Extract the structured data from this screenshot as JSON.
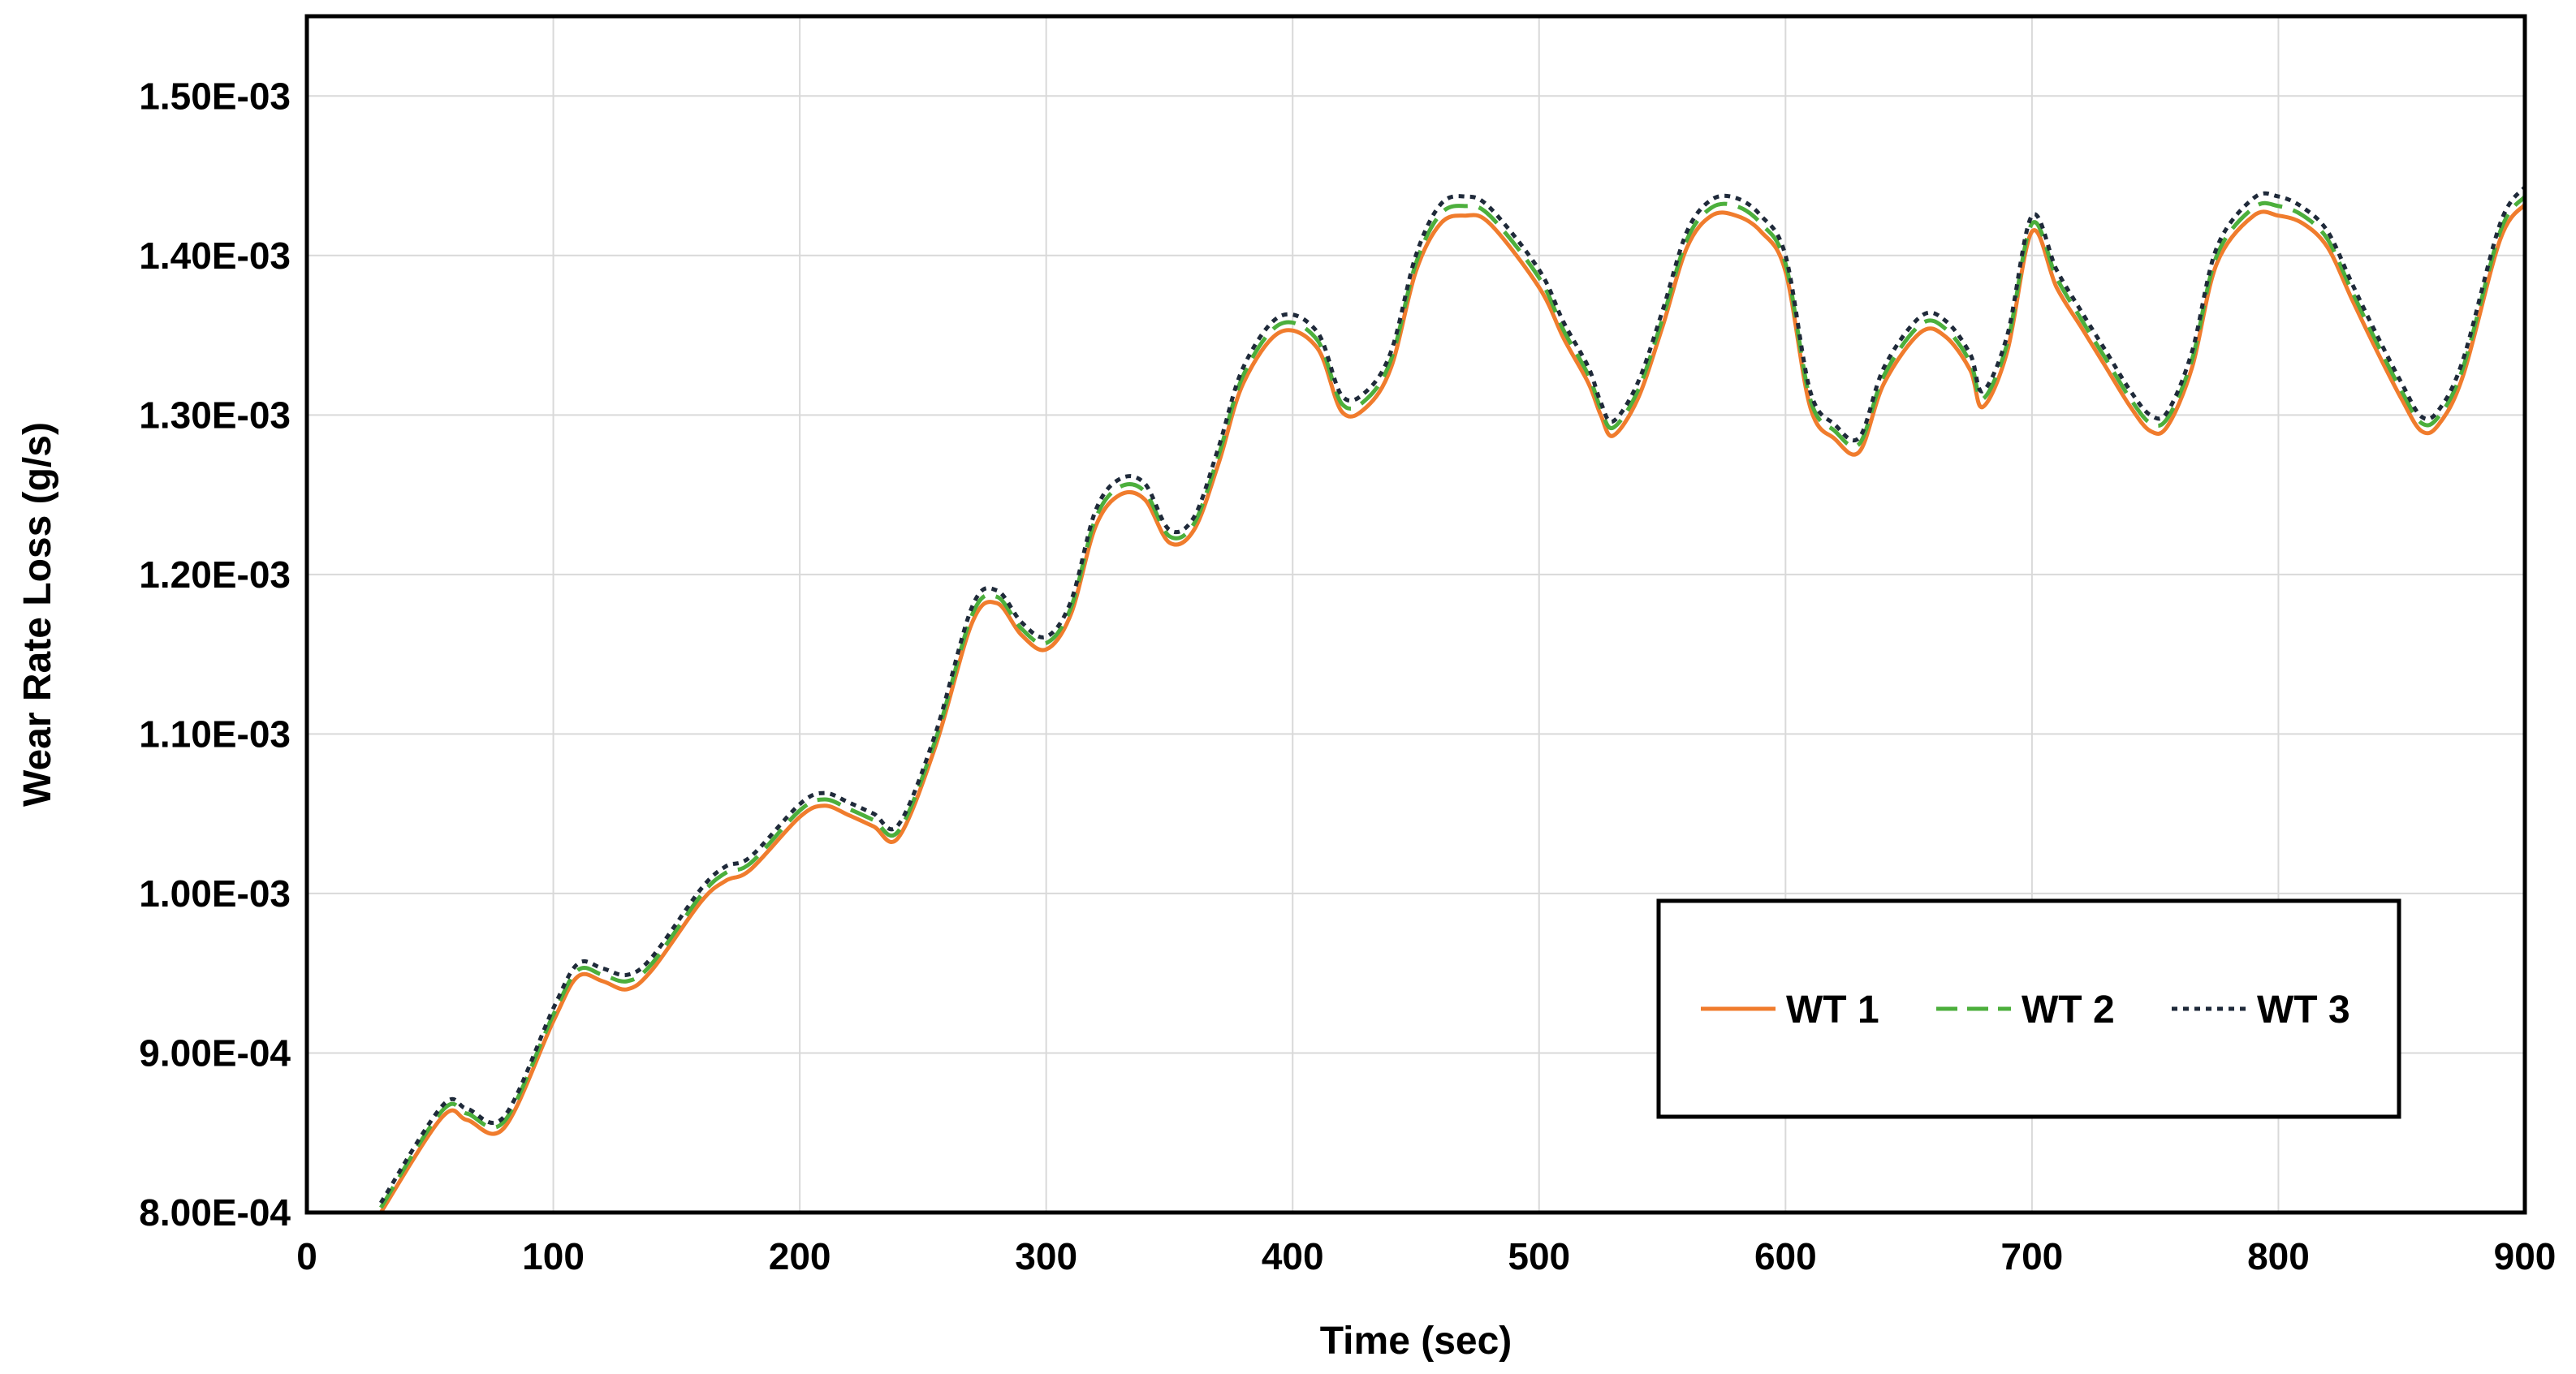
{
  "chart_data": {
    "type": "line",
    "xlabel": "Time (sec)",
    "ylabel": "Wear Rate Loss (g/s)",
    "xlim": [
      0,
      900
    ],
    "ylim": [
      0.0008,
      0.00155
    ],
    "x_ticks": [
      0,
      100,
      200,
      300,
      400,
      500,
      600,
      700,
      800,
      900
    ],
    "x_tick_labels": [
      "0",
      "100",
      "200",
      "300",
      "400",
      "500",
      "600",
      "700",
      "800",
      "900"
    ],
    "y_ticks": [
      0.0008,
      0.0009,
      0.001,
      0.0011,
      0.0012,
      0.0013,
      0.0014,
      0.0015
    ],
    "y_tick_labels": [
      "8.00E-04",
      "9.00E-04",
      "1.00E-03",
      "1.10E-03",
      "1.20E-03",
      "1.30E-03",
      "1.40E-03",
      "1.50E-03"
    ],
    "grid": true,
    "legend_position": "lower-right",
    "series": [
      {
        "name": "WT 1",
        "color": "#f07c2d",
        "style": "solid",
        "x": [
          30,
          55,
          65,
          80,
          100,
          110,
          120,
          130,
          140,
          160,
          170,
          180,
          200,
          210,
          220,
          230,
          240,
          255,
          270,
          280,
          290,
          300,
          310,
          320,
          330,
          340,
          350,
          360,
          370,
          380,
          395,
          410,
          420,
          430,
          440,
          450,
          460,
          470,
          480,
          500,
          510,
          520,
          525,
          530,
          540,
          550,
          560,
          570,
          580,
          590,
          600,
          610,
          620,
          630,
          640,
          655,
          665,
          675,
          680,
          690,
          700,
          710,
          720,
          730,
          740,
          748,
          755,
          765,
          775,
          790,
          800,
          810,
          820,
          830,
          840,
          850,
          858,
          865,
          875,
          890,
          900
        ],
        "y": [
          0.0008,
          0.00086,
          0.000858,
          0.000853,
          0.00092,
          0.000948,
          0.000945,
          0.00094,
          0.000952,
          0.000995,
          0.001008,
          0.001015,
          0.001048,
          0.001055,
          0.001049,
          0.001042,
          0.001035,
          0.001092,
          0.00117,
          0.001182,
          0.001162,
          0.001153,
          0.001175,
          0.00123,
          0.00125,
          0.001247,
          0.00122,
          0.001228,
          0.00127,
          0.00132,
          0.001352,
          0.001342,
          0.001302,
          0.001305,
          0.00133,
          0.00139,
          0.00142,
          0.001425,
          0.00142,
          0.00138,
          0.001348,
          0.00132,
          0.0013,
          0.001287,
          0.00131,
          0.001355,
          0.001405,
          0.001425,
          0.001425,
          0.001415,
          0.00139,
          0.001305,
          0.001285,
          0.001277,
          0.00132,
          0.001352,
          0.001349,
          0.001328,
          0.001305,
          0.00134,
          0.001415,
          0.00138,
          0.001355,
          0.00133,
          0.001305,
          0.00129,
          0.001293,
          0.00133,
          0.001395,
          0.001425,
          0.001425,
          0.00142,
          0.001405,
          0.001372,
          0.00134,
          0.00131,
          0.00129,
          0.001294,
          0.001325,
          0.00141,
          0.001432
        ]
      },
      {
        "name": "WT 2",
        "color": "#4caf3c",
        "style": "dashed",
        "x": [
          30,
          55,
          65,
          80,
          100,
          110,
          120,
          130,
          140,
          160,
          170,
          180,
          200,
          210,
          220,
          230,
          240,
          255,
          270,
          280,
          290,
          300,
          310,
          320,
          330,
          340,
          350,
          360,
          370,
          380,
          395,
          410,
          420,
          430,
          440,
          450,
          460,
          470,
          480,
          500,
          510,
          520,
          525,
          530,
          540,
          550,
          560,
          570,
          580,
          590,
          600,
          610,
          620,
          630,
          640,
          655,
          665,
          675,
          680,
          690,
          700,
          710,
          720,
          730,
          740,
          748,
          755,
          765,
          775,
          790,
          800,
          810,
          820,
          830,
          840,
          850,
          858,
          865,
          875,
          890,
          900
        ],
        "y": [
          0.000803,
          0.000864,
          0.000862,
          0.000857,
          0.000924,
          0.000952,
          0.000949,
          0.000945,
          0.000956,
          0.000999,
          0.001013,
          0.001019,
          0.001052,
          0.001059,
          0.001053,
          0.001046,
          0.001039,
          0.001096,
          0.001175,
          0.001186,
          0.001166,
          0.001157,
          0.001179,
          0.001235,
          0.001255,
          0.001252,
          0.001224,
          0.001232,
          0.001275,
          0.001325,
          0.001357,
          0.001347,
          0.001307,
          0.00131,
          0.001335,
          0.001395,
          0.001426,
          0.001431,
          0.001425,
          0.001386,
          0.001353,
          0.001325,
          0.001304,
          0.001292,
          0.001315,
          0.00136,
          0.00141,
          0.00143,
          0.001431,
          0.00142,
          0.001395,
          0.00131,
          0.00129,
          0.001282,
          0.001325,
          0.001357,
          0.001354,
          0.001333,
          0.00131,
          0.001345,
          0.00142,
          0.001386,
          0.00136,
          0.001335,
          0.00131,
          0.001295,
          0.001298,
          0.001335,
          0.0014,
          0.00143,
          0.001431,
          0.001425,
          0.00141,
          0.001377,
          0.001345,
          0.001315,
          0.001295,
          0.001299,
          0.00133,
          0.001415,
          0.001437
        ]
      },
      {
        "name": "WT 3",
        "color": "#1f2a3a",
        "style": "dotted",
        "x": [
          30,
          55,
          65,
          80,
          100,
          110,
          120,
          130,
          140,
          160,
          170,
          180,
          200,
          210,
          220,
          230,
          240,
          255,
          270,
          280,
          290,
          300,
          310,
          320,
          330,
          340,
          350,
          360,
          370,
          380,
          395,
          410,
          420,
          430,
          440,
          450,
          460,
          470,
          480,
          500,
          510,
          520,
          525,
          530,
          540,
          550,
          560,
          570,
          580,
          590,
          600,
          610,
          620,
          630,
          640,
          655,
          665,
          675,
          680,
          690,
          700,
          710,
          720,
          730,
          740,
          748,
          755,
          765,
          775,
          790,
          800,
          810,
          820,
          830,
          840,
          850,
          858,
          865,
          875,
          890,
          900
        ],
        "y": [
          0.000806,
          0.000867,
          0.000865,
          0.00086,
          0.000928,
          0.000956,
          0.000953,
          0.000949,
          0.00096,
          0.001003,
          0.001017,
          0.001023,
          0.001056,
          0.001063,
          0.001057,
          0.00105,
          0.001043,
          0.0011,
          0.00118,
          0.00119,
          0.00117,
          0.001161,
          0.001183,
          0.00124,
          0.00126,
          0.001257,
          0.001228,
          0.001236,
          0.00128,
          0.00133,
          0.001362,
          0.001352,
          0.001312,
          0.001315,
          0.00134,
          0.0014,
          0.001432,
          0.001437,
          0.00143,
          0.001391,
          0.001358,
          0.00133,
          0.001308,
          0.001296,
          0.00132,
          0.001365,
          0.001415,
          0.001435,
          0.001436,
          0.001425,
          0.0014,
          0.001315,
          0.001294,
          0.001286,
          0.00133,
          0.001362,
          0.001359,
          0.001338,
          0.001315,
          0.00135,
          0.001425,
          0.001391,
          0.001365,
          0.00134,
          0.001315,
          0.0013,
          0.001302,
          0.00134,
          0.001405,
          0.001436,
          0.001437,
          0.00143,
          0.001415,
          0.001382,
          0.00135,
          0.00132,
          0.001299,
          0.001303,
          0.001335,
          0.00142,
          0.001443
        ]
      }
    ]
  }
}
